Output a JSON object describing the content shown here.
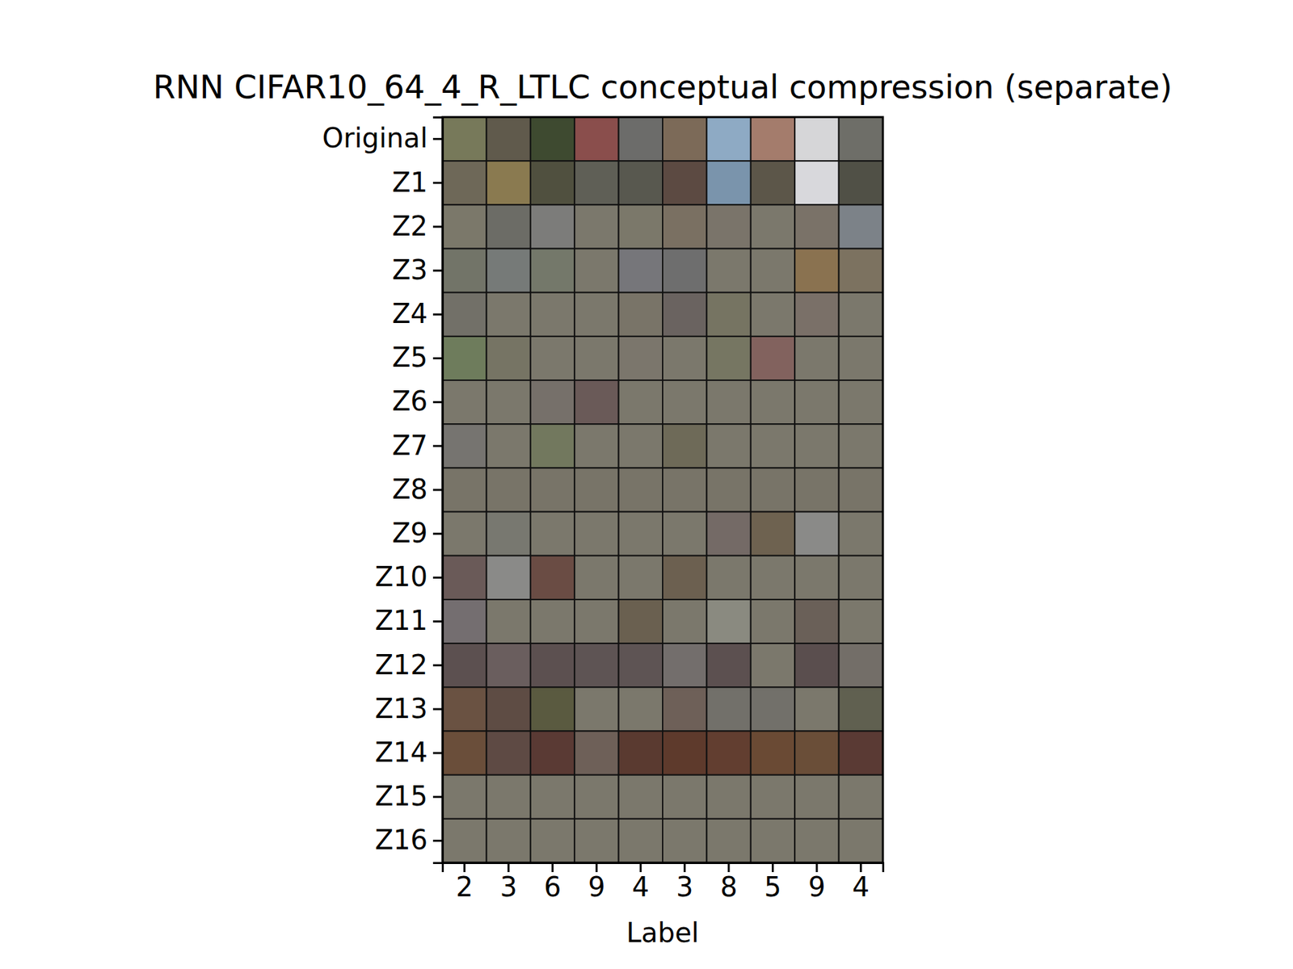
{
  "chart_data": {
    "type": "image_grid",
    "title": "RNN CIFAR10_64_4_R_LTLC conceptual compression (separate)",
    "x_label": "Label",
    "categories": [
      2,
      3,
      6,
      9,
      4,
      3,
      8,
      5,
      9,
      4
    ],
    "series": [
      {
        "name": "Original",
        "colors": [
          "#77795a",
          "#605a4c",
          "#3e4a30",
          "#8a4e4c",
          "#6c6c6a",
          "#7c6a58",
          "#8eaac4",
          "#a47c6c",
          "#d6d6d8",
          "#6e6e68"
        ]
      },
      {
        "name": "Z1",
        "colors": [
          "#6e6858",
          "#8a7a50",
          "#50503f",
          "#5f5f56",
          "#58584f",
          "#5c4a42",
          "#7a94ac",
          "#5c5649",
          "#d8d8dc",
          "#505046"
        ]
      },
      {
        "name": "Z2",
        "colors": [
          "#7b786a",
          "#6c6c66",
          "#7c7c7a",
          "#7b786c",
          "#7b786a",
          "#7a7062",
          "#7a746a",
          "#7b786c",
          "#7a7268",
          "#7c8288"
        ]
      },
      {
        "name": "Z3",
        "colors": [
          "#727468",
          "#767a78",
          "#74786a",
          "#7b786c",
          "#76767a",
          "#6e6e6e",
          "#7b786c",
          "#7b786c",
          "#8a7250",
          "#7c7260"
        ]
      },
      {
        "name": "Z4",
        "colors": [
          "#727068",
          "#7b786c",
          "#7b786c",
          "#7b786c",
          "#797468",
          "#6a6360",
          "#767462",
          "#7b786c",
          "#7a7068",
          "#7b786c"
        ]
      },
      {
        "name": "Z5",
        "colors": [
          "#6e7c5c",
          "#767464",
          "#7b786c",
          "#7b786c",
          "#7b766c",
          "#7b786c",
          "#767662",
          "#82625e",
          "#7b786c",
          "#7b786c"
        ]
      },
      {
        "name": "Z6",
        "colors": [
          "#7b786c",
          "#7b786c",
          "#76706a",
          "#6a5a58",
          "#7b786c",
          "#7b786c",
          "#7b786c",
          "#7b786c",
          "#7b786c",
          "#7b786c"
        ]
      },
      {
        "name": "Z7",
        "colors": [
          "#767470",
          "#7b786c",
          "#72785e",
          "#7b786c",
          "#7b786c",
          "#6e6a58",
          "#7b786c",
          "#7b786c",
          "#7b786c",
          "#7b786c"
        ]
      },
      {
        "name": "Z8",
        "colors": [
          "#787468",
          "#787468",
          "#787468",
          "#787468",
          "#787468",
          "#787468",
          "#787468",
          "#787468",
          "#787468",
          "#787468"
        ]
      },
      {
        "name": "Z9",
        "colors": [
          "#7b786c",
          "#787870",
          "#7b786c",
          "#7b786c",
          "#7b786c",
          "#7b786c",
          "#746a66",
          "#6e6250",
          "#8a8a88",
          "#7b786c"
        ]
      },
      {
        "name": "Z10",
        "colors": [
          "#6a5a58",
          "#8a8a88",
          "#6a4c44",
          "#7b786c",
          "#7b786c",
          "#6c6050",
          "#7b786c",
          "#7b786c",
          "#7b786c",
          "#7b786c"
        ]
      },
      {
        "name": "Z11",
        "colors": [
          "#746e70",
          "#7b786c",
          "#7b786c",
          "#7b786c",
          "#6a6050",
          "#7b786c",
          "#8a8a80",
          "#7b786c",
          "#6a6058",
          "#7b786c"
        ]
      },
      {
        "name": "Z12",
        "colors": [
          "#5c5050",
          "#6a5e5e",
          "#5c5050",
          "#5e5454",
          "#5e5454",
          "#736e6c",
          "#5c5050",
          "#7b786c",
          "#5a4e4e",
          "#736e68"
        ]
      },
      {
        "name": "Z13",
        "colors": [
          "#6a5242",
          "#5e4c44",
          "#5a5a40",
          "#7b786c",
          "#7b786c",
          "#6e6058",
          "#72706a",
          "#72706a",
          "#7b786c",
          "#606050"
        ]
      },
      {
        "name": "Z14",
        "colors": [
          "#6a4e3a",
          "#5e4a44",
          "#5a3a34",
          "#6e6058",
          "#5a3a30",
          "#5e3a2c",
          "#623e30",
          "#6a4a34",
          "#6a4e38",
          "#5a3a34"
        ]
      },
      {
        "name": "Z15",
        "colors": [
          "#7b786c",
          "#7b786c",
          "#7b786c",
          "#7b786c",
          "#7b786c",
          "#7b786c",
          "#7b786c",
          "#7b786c",
          "#7b786c",
          "#7b786c"
        ]
      },
      {
        "name": "Z16",
        "colors": [
          "#7b786c",
          "#7b786c",
          "#7b786c",
          "#7b786c",
          "#7b786c",
          "#7b786c",
          "#7b786c",
          "#7b786c",
          "#7b786c",
          "#7b786c"
        ]
      }
    ]
  }
}
